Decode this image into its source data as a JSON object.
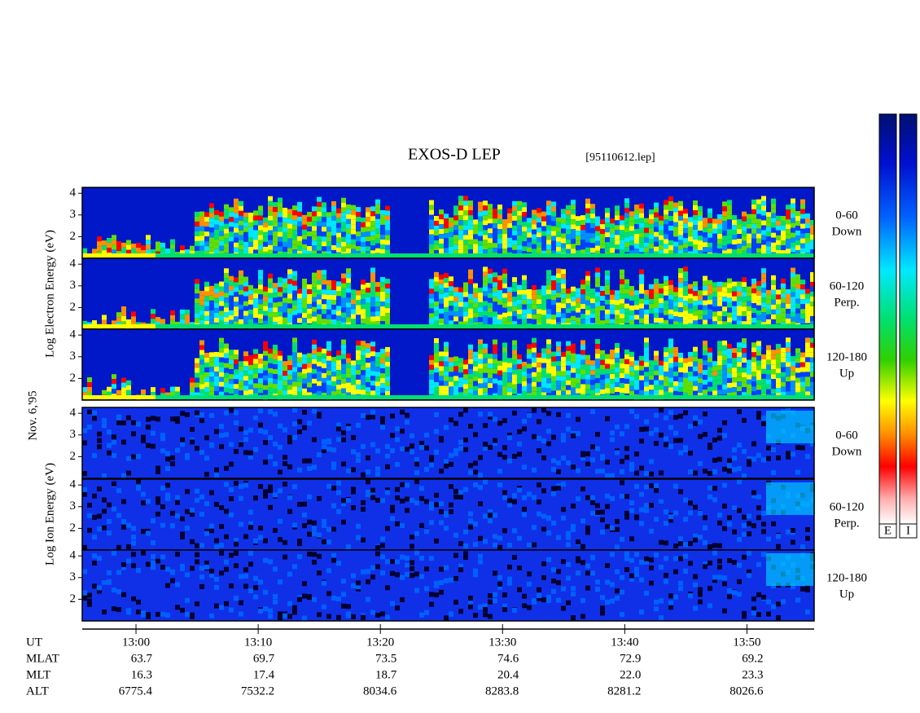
{
  "chart_data": {
    "type": "spectrogram",
    "title": "EXOS-D LEP",
    "file_label": "[95110612.lep]",
    "date_label": "Nov. 6,'95",
    "groups": [
      {
        "axis_label": "Log Electron Energy (eV)",
        "panels": [
          {
            "label": [
              "0-60",
              "Down"
            ]
          },
          {
            "label": [
              "60-120",
              "Perp."
            ]
          },
          {
            "label": [
              "120-180",
              "Up"
            ]
          }
        ]
      },
      {
        "axis_label": "Log Ion Energy (eV)",
        "panels": [
          {
            "label": [
              "0-60",
              "Down"
            ]
          },
          {
            "label": [
              "60-120",
              "Perp."
            ]
          },
          {
            "label": [
              "120-180",
              "Up"
            ]
          }
        ]
      }
    ],
    "ylim": [
      1,
      4.27
    ],
    "yticks": [
      2,
      3,
      4
    ],
    "xlim": [
      775.6,
      835.5
    ],
    "xticks": [
      {
        "value": 780,
        "label": "13:00"
      },
      {
        "value": 790,
        "label": "13:10"
      },
      {
        "value": 800,
        "label": "13:20"
      },
      {
        "value": 810,
        "label": "13:30"
      },
      {
        "value": 820,
        "label": "13:40"
      },
      {
        "value": 830,
        "label": "13:50"
      }
    ],
    "x_label": "UT",
    "ephemeris": [
      {
        "name": "MLAT",
        "values": [
          "63.7",
          "69.7",
          "73.5",
          "74.6",
          "72.9",
          "69.2"
        ]
      },
      {
        "name": "MLT",
        "values": [
          "16.3",
          "17.4",
          "18.7",
          "20.4",
          "22.0",
          "23.3"
        ]
      },
      {
        "name": "ALT",
        "values": [
          "6775.4",
          "7532.2",
          "8034.6",
          "8283.8",
          "8281.2",
          "8026.6"
        ]
      }
    ],
    "colorbar_labels": [
      "E",
      "I"
    ]
  }
}
